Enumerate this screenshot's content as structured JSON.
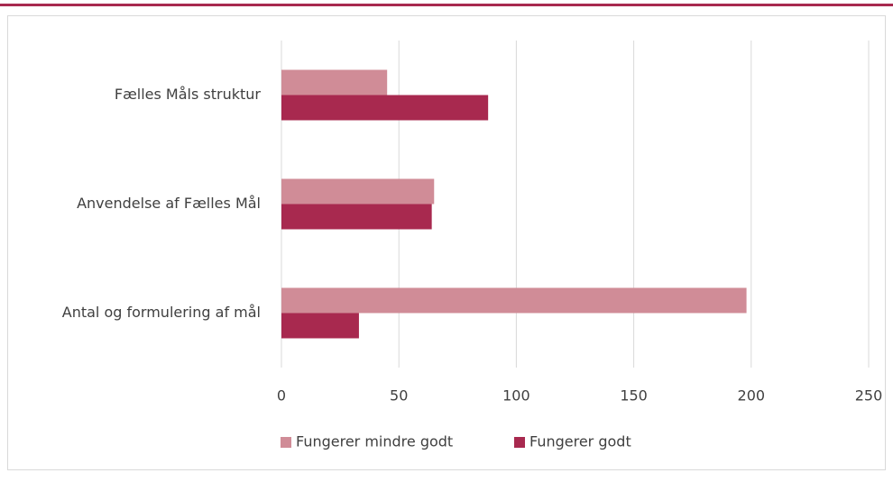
{
  "chart_data": {
    "type": "hbar",
    "categories": [
      "Fælles Måls struktur",
      "Anvendelse af Fælles Mål",
      "Antal og formulering af mål"
    ],
    "series": [
      {
        "name": "Fungerer mindre godt",
        "color": "#d08c97",
        "values": [
          45,
          65,
          198
        ]
      },
      {
        "name": "Fungerer godt",
        "color": "#a8294f",
        "values": [
          88,
          64,
          33
        ]
      }
    ],
    "xlim": [
      0,
      250
    ],
    "xticks": [
      0,
      50,
      100,
      150,
      200,
      250
    ],
    "grid": true,
    "legend": "bottom"
  }
}
